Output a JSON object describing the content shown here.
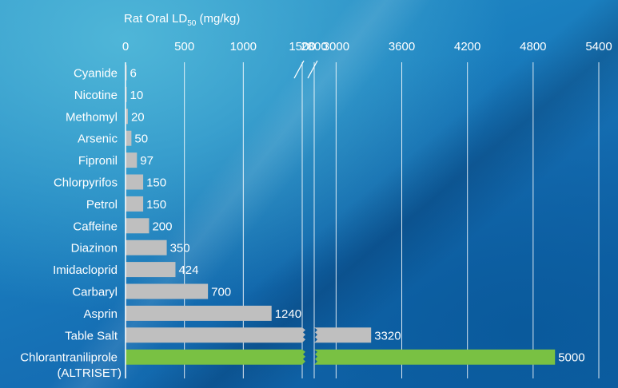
{
  "chart_data": {
    "type": "bar",
    "orientation": "horizontal",
    "title": "Rat Oral LD50 (mg/kg)",
    "axis_title": {
      "main": "Rat Oral LD",
      "sub": "50",
      "unit": " (mg/kg)"
    },
    "axis_break": {
      "from": 1500,
      "to": 2800
    },
    "x_ticks_left": [
      0,
      500,
      1000,
      1500
    ],
    "x_ticks_right": [
      2800,
      3000,
      3600,
      4200,
      4800,
      5400
    ],
    "grid": true,
    "bar_color": "#bfbfbf",
    "highlight_color": "#79c143",
    "categories": [
      "Cyanide",
      "Nicotine",
      "Methomyl",
      "Arsenic",
      "Fipronil",
      "Chlorpyrifos",
      "Petrol",
      "Caffeine",
      "Diazinon",
      "Imidacloprid",
      "Carbaryl",
      "Asprin",
      "Table Salt",
      "Chlorantraniliprole"
    ],
    "category_sublabels": {
      "Chlorantraniliprole": "(ALTRISET)"
    },
    "values": [
      6,
      10,
      20,
      50,
      97,
      150,
      150,
      200,
      350,
      424,
      700,
      1240,
      3320,
      5000
    ],
    "highlight": "Chlorantraniliprole"
  }
}
